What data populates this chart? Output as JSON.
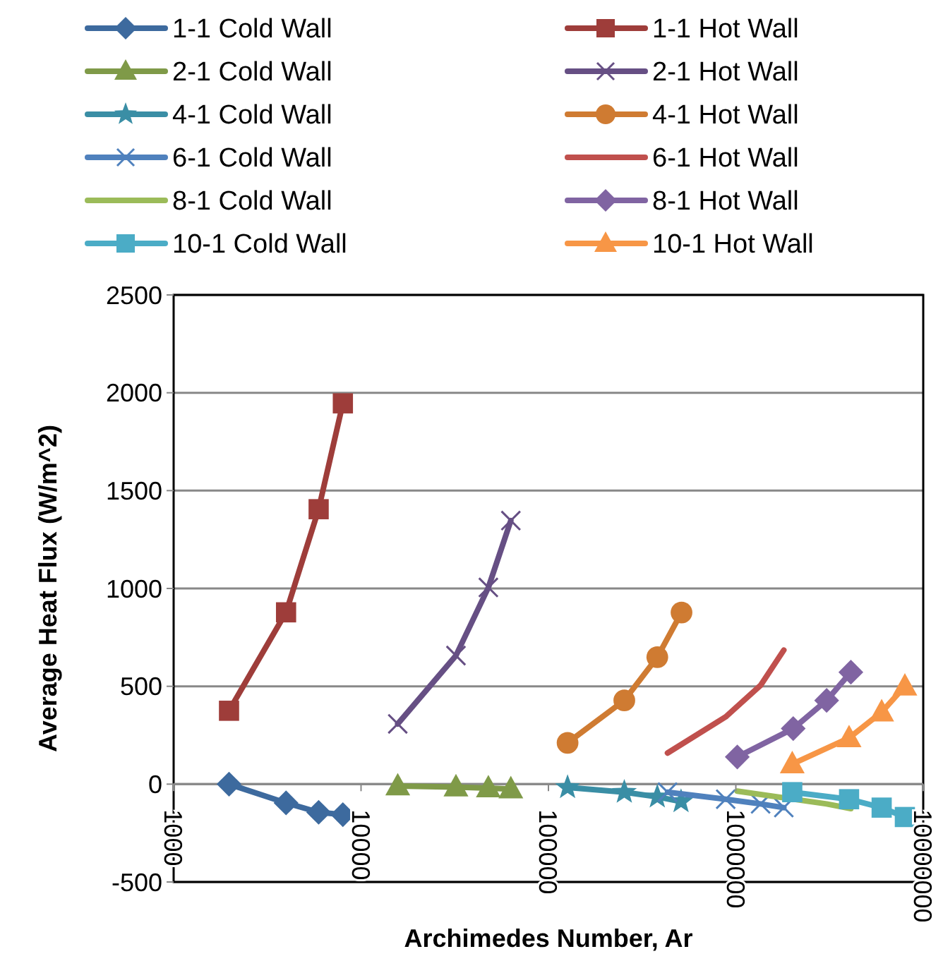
{
  "chart_data": {
    "type": "line",
    "xlabel": "Archimedes Number, Ar",
    "ylabel": "Average Heat Flux (W/m^2)",
    "log": "x",
    "grid": "y",
    "legend": "top",
    "xlim": [
      1000,
      10000000
    ],
    "xticks": [
      1000,
      10000,
      100000,
      1000000,
      10000000
    ],
    "ylim": [
      -500,
      2500
    ],
    "yticks": [
      -500,
      0,
      500,
      1000,
      1500,
      2000,
      2500
    ],
    "series": [
      {
        "name": "1-1 Cold Wall",
        "color": "#3d6a9e",
        "marker": "diamond",
        "x": [
          1975,
          3980,
          5940,
          8000
        ],
        "values": [
          0,
          -96,
          -144,
          -156
        ]
      },
      {
        "name": "1-1 Hot Wall",
        "color": "#9e3d3a",
        "marker": "square",
        "x": [
          1975,
          3980,
          5940,
          8000
        ],
        "values": [
          375,
          878,
          1405,
          1946
        ]
      },
      {
        "name": "2-1 Cold Wall",
        "color": "#7f9a48",
        "marker": "triangle",
        "x": [
          15700,
          32100,
          47800,
          63000
        ],
        "values": [
          -10,
          -15,
          -20,
          -25
        ]
      },
      {
        "name": "2-1 Hot Wall",
        "color": "#664f84",
        "marker": "cross",
        "x": [
          15700,
          32100,
          47800,
          63000
        ],
        "values": [
          308,
          657,
          1005,
          1347
        ]
      },
      {
        "name": "4-1 Cold Wall",
        "color": "#3a8ea5",
        "marker": "star",
        "x": [
          126500,
          254000,
          381000,
          510000
        ],
        "values": [
          -17,
          -41,
          -65,
          -89
        ]
      },
      {
        "name": "4-1 Hot Wall",
        "color": "#cf7b32",
        "marker": "circle",
        "x": [
          126500,
          254000,
          381000,
          513000
        ],
        "values": [
          211,
          428,
          649,
          877
        ]
      },
      {
        "name": "6-1 Cold Wall",
        "color": "#4f81bd",
        "marker": "cross",
        "x": [
          432000,
          883000,
          1356000,
          1803000
        ],
        "values": [
          -41,
          -77,
          -101,
          -120
        ]
      },
      {
        "name": "6-1 Hot Wall",
        "color": "#c0504d",
        "marker": "none",
        "x": [
          432000,
          883000,
          1356000,
          1803000
        ],
        "values": [
          159,
          344,
          505,
          685
        ]
      },
      {
        "name": "8-1 Cold Wall",
        "color": "#9bbb59",
        "marker": "none",
        "x": [
          1018000,
          2024000,
          3052000,
          4110000
        ],
        "values": [
          -36,
          null,
          -101,
          -125
        ]
      },
      {
        "name": "8-1 Hot Wall",
        "color": "#8064a2",
        "marker": "diamond",
        "x": [
          1018000,
          2024000,
          3052000,
          4110000
        ],
        "values": [
          139,
          284,
          428,
          572
        ]
      },
      {
        "name": "10-1 Cold Wall",
        "color": "#4bacc6",
        "marker": "square",
        "x": [
          2000000,
          4020000,
          6000000,
          7980000
        ],
        "values": [
          -41,
          -77,
          -120,
          -168
        ]
      },
      {
        "name": "10-1 Hot Wall",
        "color": "#f79646",
        "marker": "triangle",
        "x": [
          2000000,
          4020000,
          6000000,
          7980000
        ],
        "values": [
          103,
          236,
          368,
          500
        ]
      }
    ]
  }
}
